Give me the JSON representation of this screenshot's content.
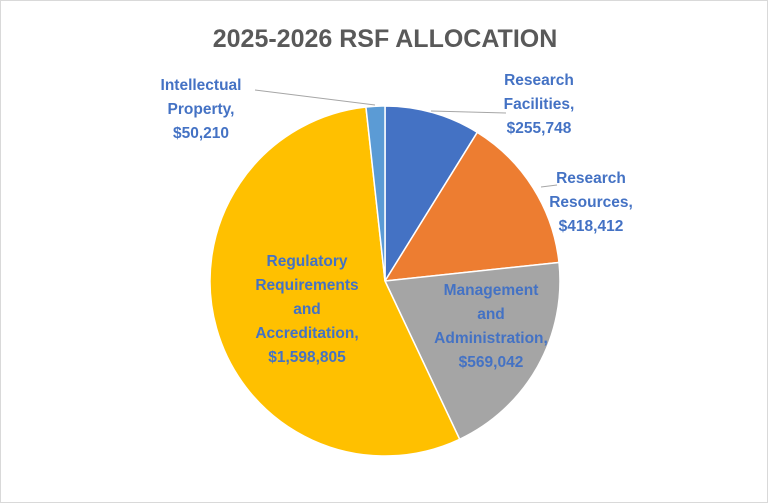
{
  "chart_data": {
    "type": "pie",
    "title": "2025-2026 RSF ALLOCATION",
    "slices": [
      {
        "name": "Research Facilities",
        "value": 255748,
        "label_lines": [
          "Research",
          "Facilities,",
          "$255,748"
        ],
        "color": "#4472c4",
        "label_color": "#4472c4"
      },
      {
        "name": "Research Resources",
        "value": 418412,
        "label_lines": [
          "Research",
          "Resources,",
          "$418,412"
        ],
        "color": "#ed7d31",
        "label_color": "#4472c4"
      },
      {
        "name": "Management and Administration",
        "value": 569042,
        "label_lines": [
          "Management",
          "and",
          "Administration,",
          "$569,042"
        ],
        "color": "#a5a5a5",
        "label_color": "#4472c4"
      },
      {
        "name": "Regulatory Requirements and Accreditation",
        "value": 1598805,
        "label_lines": [
          "Regulatory",
          "Requirements",
          "and",
          "Accreditation,",
          "$1,598,805"
        ],
        "color": "#ffc000",
        "label_color": "#4472c4"
      },
      {
        "name": "Intellectual Property",
        "value": 50210,
        "label_lines": [
          "Intellectual",
          "Property,",
          "$50,210"
        ],
        "color": "#5b9bd5",
        "label_color": "#4472c4"
      }
    ],
    "legend": "none",
    "data_labels": "category name and value"
  }
}
